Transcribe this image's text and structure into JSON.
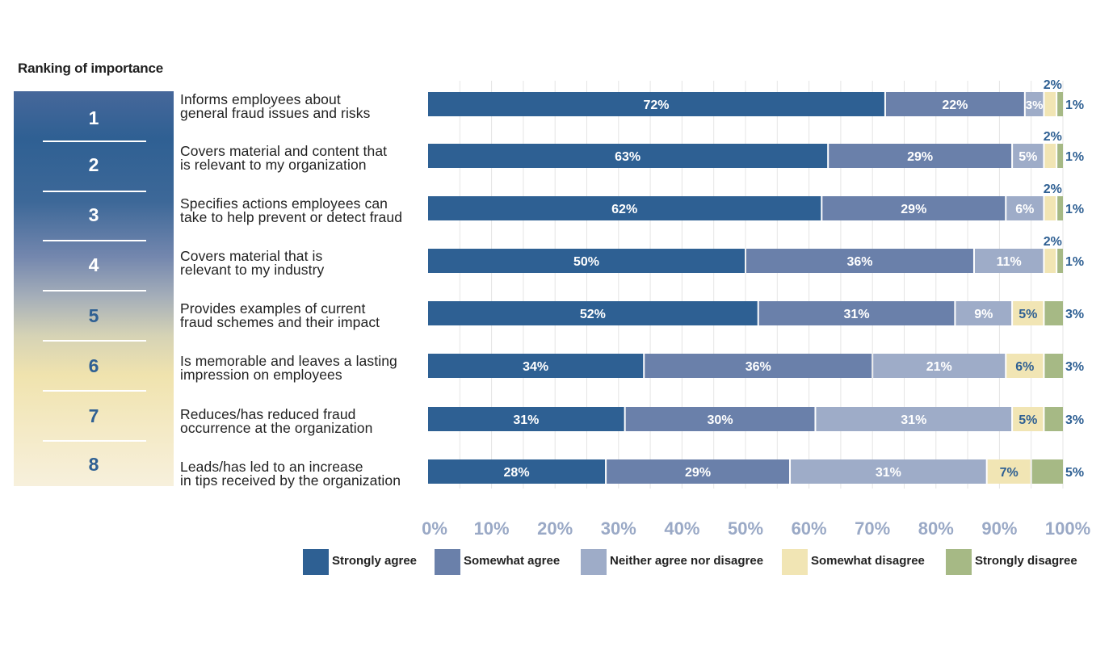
{
  "ranking": {
    "title": "Ranking of importance",
    "ranks": [
      "1",
      "2",
      "3",
      "4",
      "5",
      "6",
      "7",
      "8"
    ],
    "light_rank_color": "#ffffff",
    "dark_rank_color": "#2f6093"
  },
  "colors": {
    "strongly_agree": "#2e6093",
    "somewhat_agree": "#6a80aa",
    "neither": "#9eacc8",
    "somewhat_disagree": "#f1e5b4",
    "strongly_disagree": "#a6b985",
    "axis_text": "#9aa9c6",
    "outside_label": "#2f6093",
    "grid": "#e4e4e4"
  },
  "chart_data": {
    "type": "bar",
    "orientation": "horizontal",
    "stacked": true,
    "categories": [
      "Informs employees about\ngeneral fraud issues and risks",
      "Covers material and content that\nis relevant to my organization",
      "Specifies actions employees can\ntake to help prevent or detect fraud",
      "Covers material that is\nrelevant to my industry",
      "Provides examples of current\nfraud schemes and their impact",
      "Is memorable and leaves a lasting\nimpression on employees",
      "Reduces/has reduced fraud\noccurrence at the organization",
      "Leads/has led to an increase\nin tips received by the organization"
    ],
    "series": [
      {
        "name": "Strongly agree",
        "values": [
          72,
          63,
          62,
          50,
          52,
          34,
          31,
          28
        ]
      },
      {
        "name": "Somewhat agree",
        "values": [
          22,
          29,
          29,
          36,
          31,
          36,
          30,
          29
        ]
      },
      {
        "name": "Neither agree nor disagree",
        "values": [
          3,
          5,
          6,
          11,
          9,
          21,
          31,
          31
        ]
      },
      {
        "name": "Somewhat disagree",
        "values": [
          2,
          2,
          2,
          2,
          5,
          6,
          5,
          7
        ]
      },
      {
        "name": "Strongly disagree",
        "values": [
          1,
          1,
          1,
          1,
          3,
          3,
          3,
          5
        ]
      }
    ],
    "value_suffix": "%",
    "xlim": [
      0,
      100
    ],
    "x_ticks": [
      "0%",
      "10%",
      "20%",
      "30%",
      "40%",
      "50%",
      "60%",
      "70%",
      "80%",
      "90%",
      "100%"
    ],
    "grid": true,
    "legend_position": "bottom"
  }
}
